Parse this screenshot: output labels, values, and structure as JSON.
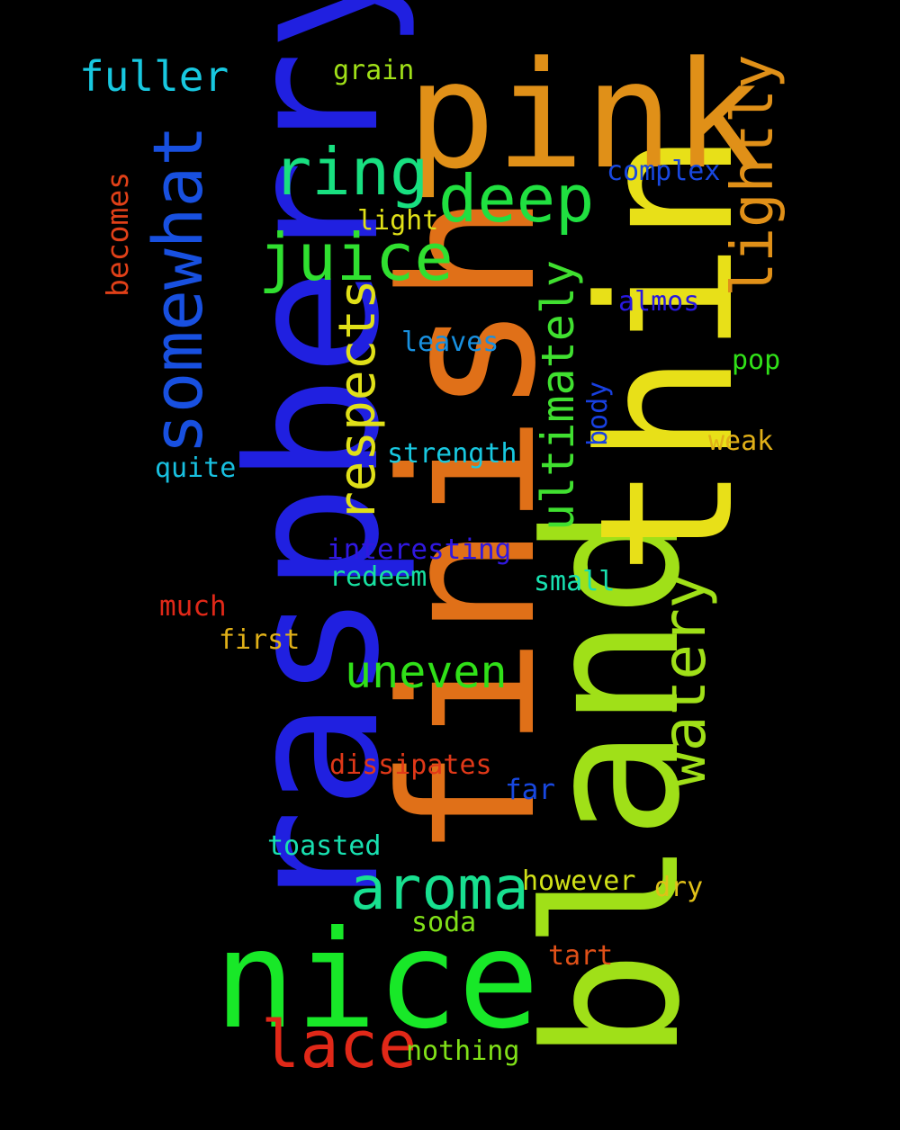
{
  "words": [
    {
      "text": "raspberry",
      "color": "#2020e0"
    },
    {
      "text": "finish",
      "color": "#e07018"
    },
    {
      "text": "bland",
      "color": "#a0e018"
    },
    {
      "text": "thin",
      "color": "#e8e018"
    },
    {
      "text": "pink",
      "color": "#e09018"
    },
    {
      "text": "nice",
      "color": "#18e828"
    },
    {
      "text": "somewhat",
      "color": "#1850e0"
    },
    {
      "text": "ring",
      "color": "#18e080"
    },
    {
      "text": "deep",
      "color": "#20e040"
    },
    {
      "text": "juice",
      "color": "#30e030"
    },
    {
      "text": "lightly",
      "color": "#e09018"
    },
    {
      "text": "respects",
      "color": "#e0e018"
    },
    {
      "text": "ultimately",
      "color": "#40e030"
    },
    {
      "text": "watery",
      "color": "#a0e018"
    },
    {
      "text": "aroma",
      "color": "#18e090"
    },
    {
      "text": "uneven",
      "color": "#30e018"
    },
    {
      "text": "lace",
      "color": "#e02818"
    },
    {
      "text": "fuller",
      "color": "#18c8e0"
    },
    {
      "text": "grain",
      "color": "#a0e018"
    },
    {
      "text": "complex",
      "color": "#1848e0"
    },
    {
      "text": "light",
      "color": "#e0e018"
    },
    {
      "text": "becomes",
      "color": "#e04018"
    },
    {
      "text": "almos",
      "color": "#2818e0"
    },
    {
      "text": "leaves",
      "color": "#1890e0"
    },
    {
      "text": "pop",
      "color": "#30e018"
    },
    {
      "text": "body",
      "color": "#1840e0"
    },
    {
      "text": "weak",
      "color": "#e0b018"
    },
    {
      "text": "strength",
      "color": "#18c8e0"
    },
    {
      "text": "quite",
      "color": "#18c0e0"
    },
    {
      "text": "interesting",
      "color": "#3018e0"
    },
    {
      "text": "redeem",
      "color": "#18e0a0"
    },
    {
      "text": "small",
      "color": "#18e0b0"
    },
    {
      "text": "much",
      "color": "#e02818"
    },
    {
      "text": "first",
      "color": "#e0b018"
    },
    {
      "text": "dissipates",
      "color": "#e03818"
    },
    {
      "text": "far",
      "color": "#1848e0"
    },
    {
      "text": "toasted",
      "color": "#18e0b0"
    },
    {
      "text": "however",
      "color": "#d0e018"
    },
    {
      "text": "dry",
      "color": "#e0c018"
    },
    {
      "text": "soda",
      "color": "#80e018"
    },
    {
      "text": "tart",
      "color": "#e05018"
    },
    {
      "text": "nothing",
      "color": "#80e018"
    }
  ]
}
